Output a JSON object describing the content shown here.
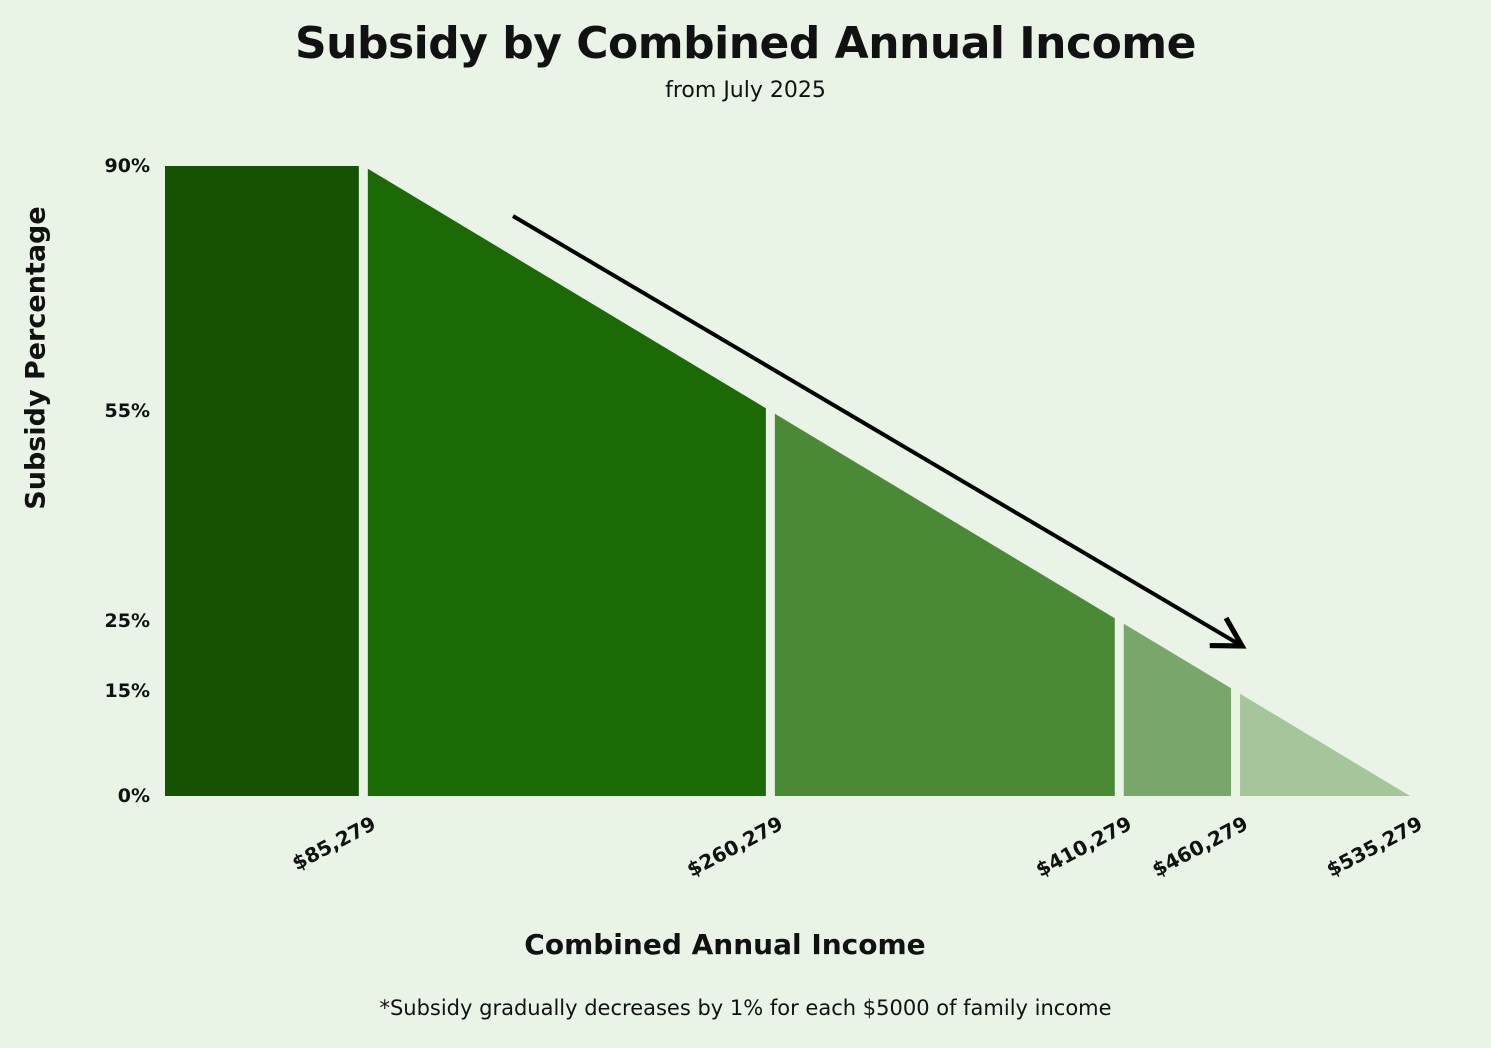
{
  "chart_data": {
    "type": "area",
    "title": "Subsidy by Combined Annual Income",
    "subtitle": "from July 2025",
    "xlabel": "Combined Annual Income",
    "ylabel": "Subsidy Percentage",
    "footnote": "*Subsidy gradually decreases by 1% for each $5000 of family income",
    "xlim": [
      0,
      535279
    ],
    "ylim": [
      0,
      90
    ],
    "y_ticks": [
      {
        "value": 90,
        "label": "90%"
      },
      {
        "value": 55,
        "label": "55%"
      },
      {
        "value": 25,
        "label": "25%"
      },
      {
        "value": 15,
        "label": "15%"
      },
      {
        "value": 0,
        "label": "0%"
      }
    ],
    "x_ticks": [
      {
        "value": 85279,
        "label": "$85,279"
      },
      {
        "value": 260279,
        "label": "$260,279"
      },
      {
        "value": 410279,
        "label": "$410,279"
      },
      {
        "value": 460279,
        "label": "$460,279"
      },
      {
        "value": 535279,
        "label": "$535,279"
      }
    ],
    "segments": [
      {
        "x0": 0,
        "x1": 85279,
        "y0": 90,
        "y1": 90,
        "color": "#155303"
      },
      {
        "x0": 85279,
        "x1": 260279,
        "y0": 90,
        "y1": 55,
        "color": "#1c6a05"
      },
      {
        "x0": 260279,
        "x1": 410279,
        "y0": 55,
        "y1": 25,
        "color": "#4a8a37"
      },
      {
        "x0": 410279,
        "x1": 460279,
        "y0": 25,
        "y1": 15,
        "color": "#78a66b"
      },
      {
        "x0": 460279,
        "x1": 535279,
        "y0": 15,
        "y1": 0,
        "color": "#a5c59a"
      }
    ],
    "trend_arrow": {
      "direction": "down-right",
      "color": "#000000"
    },
    "grid": false,
    "legend": "none"
  }
}
